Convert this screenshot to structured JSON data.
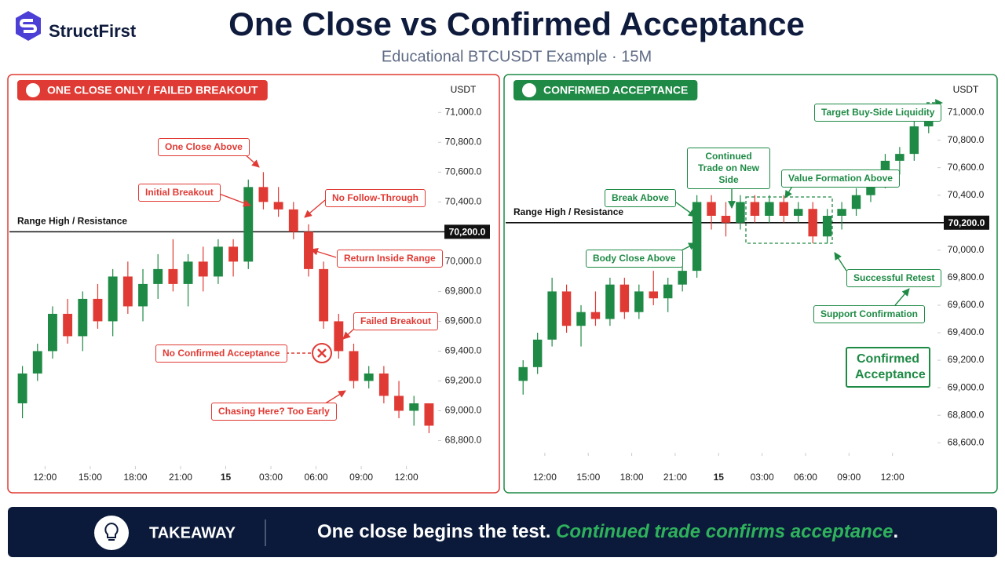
{
  "header": {
    "brand": "StructFirst",
    "title": "One Close vs Confirmed Acceptance",
    "subtitle": "Educational BTCUSDT Example · 15M"
  },
  "chart_data": [
    {
      "type": "candlestick",
      "title": "ONE CLOSE ONLY / FAILED BREAKOUT",
      "ylabel": "USDT",
      "up_color": "#1e8a45",
      "down_color": "#e03a34",
      "accent": "#e03a34",
      "x": [
        -1.5,
        -0.5,
        0.5,
        1.5,
        2.5,
        3.5,
        4.5,
        5.5,
        6.5,
        7.5,
        8.5,
        9.5,
        10.5,
        11.5,
        12.5,
        13.5,
        14.5,
        15.5,
        16.5,
        17.5,
        18.5,
        19.5,
        20.5,
        21.5,
        22.5,
        23.5,
        24.5,
        25.5
      ],
      "open": [
        69050,
        69250,
        69400,
        69650,
        69500,
        69750,
        69600,
        69900,
        69700,
        69850,
        69950,
        69850,
        70000,
        69900,
        70100,
        70000,
        70500,
        70400,
        70350,
        70200,
        69950,
        69600,
        69400,
        69200,
        69250,
        69100,
        69000,
        69050
      ],
      "high": [
        69300,
        69450,
        69700,
        69750,
        69800,
        69850,
        69950,
        70000,
        69950,
        70050,
        70150,
        70050,
        70100,
        70150,
        70150,
        70550,
        70600,
        70500,
        70400,
        70250,
        70000,
        69650,
        69450,
        69300,
        69300,
        69200,
        69100,
        69050
      ],
      "low": [
        68950,
        69200,
        69350,
        69450,
        69400,
        69550,
        69500,
        69650,
        69600,
        69750,
        69800,
        69700,
        69800,
        69850,
        69900,
        69950,
        70350,
        70300,
        70150,
        69900,
        69550,
        69350,
        69150,
        69150,
        69050,
        68950,
        68900,
        68850
      ],
      "close": [
        69250,
        69400,
        69650,
        69500,
        69750,
        69600,
        69900,
        69700,
        69850,
        69950,
        69850,
        70000,
        69900,
        70100,
        70000,
        70500,
        70400,
        70350,
        70200,
        69950,
        69600,
        69400,
        69200,
        69250,
        69100,
        69000,
        69050,
        68900
      ],
      "xlim": [
        -2,
        26
      ],
      "xticks": [
        {
          "value": 0,
          "label": "12:00"
        },
        {
          "value": 3,
          "label": "15:00"
        },
        {
          "value": 6,
          "label": "18:00"
        },
        {
          "value": 9,
          "label": "21:00"
        },
        {
          "value": 12,
          "label": "15"
        },
        {
          "value": 15,
          "label": "03:00"
        },
        {
          "value": 18,
          "label": "06:00"
        },
        {
          "value": 21,
          "label": "09:00"
        },
        {
          "value": 24,
          "label": "12:00"
        }
      ],
      "ylim": [
        68650,
        71070
      ],
      "yticks": [
        {
          "value": 68800,
          "label": "68,800.0"
        },
        {
          "value": 69000,
          "label": "69,000.0"
        },
        {
          "value": 69200,
          "label": "69,200.0"
        },
        {
          "value": 69400,
          "label": "69,400.0"
        },
        {
          "value": 69600,
          "label": "69,600.0"
        },
        {
          "value": 69800,
          "label": "69,800.0"
        },
        {
          "value": 70000,
          "label": "70,000.0"
        },
        {
          "value": 70200,
          "label": "70,200.0"
        },
        {
          "value": 70400,
          "label": "70,400.0"
        },
        {
          "value": 70600,
          "label": "70,600.0"
        },
        {
          "value": 70800,
          "label": "70,800.0"
        },
        {
          "value": 71000,
          "label": "71,000.0"
        }
      ],
      "level": {
        "name": "Range High / Resistance",
        "value": 70200,
        "label": "70,200.0"
      },
      "annotations": [
        "One Close Above",
        "Initial Breakout",
        "No Follow-Through",
        "Return Inside Range",
        "Failed Breakout",
        "No Confirmed Acceptance",
        "Chasing Here? Too Early"
      ]
    },
    {
      "type": "candlestick",
      "title": "CONFIRMED ACCEPTANCE",
      "ylabel": "USDT",
      "up_color": "#1e8a45",
      "down_color": "#e03a34",
      "accent": "#1e8a45",
      "x": [
        -1.5,
        -0.5,
        0.5,
        1.5,
        2.5,
        3.5,
        4.5,
        5.5,
        6.5,
        7.5,
        8.5,
        9.5,
        10.5,
        11.5,
        12.5,
        13.5,
        14.5,
        15.5,
        16.5,
        17.5,
        18.5,
        19.5,
        20.5,
        21.5,
        22.5,
        23.5,
        24.5,
        25.5,
        26.5
      ],
      "open": [
        69050,
        69150,
        69350,
        69700,
        69450,
        69550,
        69500,
        69750,
        69550,
        69700,
        69650,
        69750,
        69850,
        70350,
        70250,
        70200,
        70350,
        70250,
        70350,
        70250,
        70300,
        70100,
        70250,
        70300,
        70400,
        70500,
        70650,
        70700,
        70900
      ],
      "high": [
        69200,
        69400,
        69800,
        69750,
        69600,
        69700,
        69800,
        69800,
        69750,
        69850,
        69800,
        69900,
        70400,
        70400,
        70350,
        70400,
        70400,
        70400,
        70400,
        70350,
        70350,
        70300,
        70350,
        70450,
        70550,
        70700,
        70750,
        70950,
        71050
      ],
      "low": [
        68950,
        69100,
        69300,
        69400,
        69300,
        69450,
        69450,
        69500,
        69500,
        69600,
        69550,
        69700,
        69800,
        70150,
        70100,
        70150,
        70200,
        70200,
        70200,
        70200,
        70050,
        70050,
        70150,
        70250,
        70350,
        70450,
        70550,
        70650,
        70850
      ],
      "close": [
        69150,
        69350,
        69700,
        69450,
        69550,
        69500,
        69750,
        69550,
        69700,
        69650,
        69750,
        69850,
        70350,
        70250,
        70200,
        70350,
        70250,
        70350,
        70250,
        70300,
        70100,
        70250,
        70300,
        70400,
        70500,
        70650,
        70700,
        70900,
        71000
      ],
      "xlim": [
        -2,
        27
      ],
      "xticks": [
        {
          "value": 0,
          "label": "12:00"
        },
        {
          "value": 3,
          "label": "15:00"
        },
        {
          "value": 6,
          "label": "18:00"
        },
        {
          "value": 9,
          "label": "21:00"
        },
        {
          "value": 12,
          "label": "15"
        },
        {
          "value": 15,
          "label": "03:00"
        },
        {
          "value": 18,
          "label": "06:00"
        },
        {
          "value": 21,
          "label": "09:00"
        },
        {
          "value": 24,
          "label": "12:00"
        }
      ],
      "ylim": [
        68550,
        71100
      ],
      "yticks": [
        {
          "value": 68600,
          "label": "68,600.0"
        },
        {
          "value": 68800,
          "label": "68,800.0"
        },
        {
          "value": 69000,
          "label": "69,000.0"
        },
        {
          "value": 69200,
          "label": "69,200.0"
        },
        {
          "value": 69400,
          "label": "69,400.0"
        },
        {
          "value": 69600,
          "label": "69,600.0"
        },
        {
          "value": 69800,
          "label": "69,800.0"
        },
        {
          "value": 70000,
          "label": "70,000.0"
        },
        {
          "value": 70200,
          "label": "70,200.0"
        },
        {
          "value": 70400,
          "label": "70,400.0"
        },
        {
          "value": 70600,
          "label": "70,600.0"
        },
        {
          "value": 70800,
          "label": "70,800.0"
        },
        {
          "value": 71000,
          "label": "71,000.0"
        }
      ],
      "level": {
        "name": "Range High / Resistance",
        "value": 70200,
        "label": "70,200.0"
      },
      "annotations": [
        "Target Buy-Side Liquidity",
        "Continued Trade on New Side",
        "Value Formation Above",
        "Break Above",
        "Body Close Above",
        "Successful Retest",
        "Support Confirmation",
        "Confirmed Acceptance"
      ]
    }
  ],
  "takeaway": {
    "label": "TAKEAWAY",
    "text": "One close begins the test.",
    "highlight": "Continued trade confirms acceptance",
    "end": "."
  }
}
